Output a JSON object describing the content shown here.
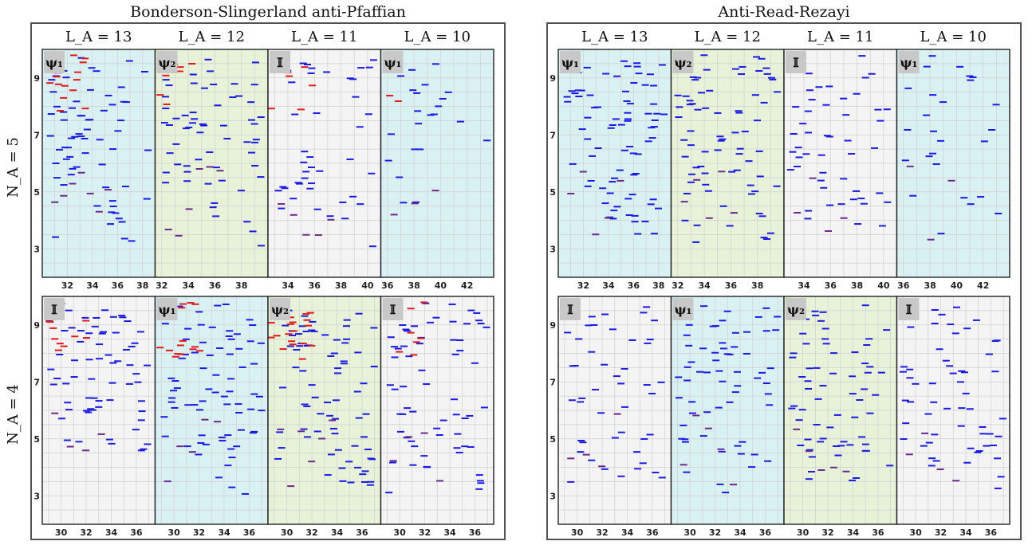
{
  "chart_data": [
    {
      "type": "scatter",
      "title": "Bonderson-Slingerland anti-Pfaffian",
      "column_labels": [
        "L_A = 13",
        "L_A = 12",
        "L_A = 11",
        "L_A = 10"
      ],
      "row_labels": [
        "N_A = 5",
        "N_A = 4"
      ],
      "ylim": [
        2,
        10
      ],
      "yticks": [
        3,
        5,
        7,
        9
      ],
      "grid": true,
      "panels": [
        {
          "row": 0,
          "col": 0,
          "label": "ψ₁",
          "background": "#daf1f4",
          "xlim": [
            30,
            39
          ],
          "xticks": [
            32,
            34,
            36,
            38
          ],
          "seed": 11,
          "n": 70,
          "red": 14,
          "purple": 7
        },
        {
          "row": 0,
          "col": 1,
          "label": "ψ₂",
          "background": "#e7f2d8",
          "xlim": [
            31.5,
            40
          ],
          "xticks": [
            32,
            34,
            36,
            38
          ],
          "seed": 23,
          "n": 60,
          "red": 9,
          "purple": 6
        },
        {
          "row": 0,
          "col": 2,
          "label": "𝕀",
          "background": "#f4f4f4",
          "xlim": [
            32.5,
            41
          ],
          "xticks": [
            34,
            36,
            38,
            40
          ],
          "seed": 37,
          "n": 42,
          "red": 6,
          "purple": 5
        },
        {
          "row": 0,
          "col": 3,
          "label": "ψ₁",
          "background": "#daf1f4",
          "xlim": [
            35.5,
            44
          ],
          "xticks": [
            36,
            38,
            40,
            42
          ],
          "seed": 51,
          "n": 22,
          "red": 2,
          "purple": 3
        },
        {
          "row": 1,
          "col": 0,
          "label": "𝕀",
          "background": "#f4f4f4",
          "xlim": [
            28.5,
            37.5
          ],
          "xticks": [
            30,
            32,
            34,
            36
          ],
          "seed": 61,
          "n": 66,
          "red": 13,
          "purple": 4
        },
        {
          "row": 1,
          "col": 1,
          "label": "ψ₁",
          "background": "#daf1f4",
          "xlim": [
            28.5,
            37.5
          ],
          "xticks": [
            30,
            32,
            34,
            36
          ],
          "seed": 73,
          "n": 72,
          "red": 16,
          "purple": 5
        },
        {
          "row": 1,
          "col": 2,
          "label": "ψ₂",
          "background": "#e7f2d8",
          "xlim": [
            28.5,
            37.5
          ],
          "xticks": [
            30,
            32,
            34,
            36
          ],
          "seed": 89,
          "n": 76,
          "red": 18,
          "purple": 6
        },
        {
          "row": 1,
          "col": 3,
          "label": "𝕀",
          "background": "#f4f4f4",
          "xlim": [
            28.5,
            37.5
          ],
          "xticks": [
            30,
            32,
            34,
            36
          ],
          "seed": 97,
          "n": 64,
          "red": 10,
          "purple": 4
        }
      ]
    },
    {
      "type": "scatter",
      "title": "Anti-Read-Rezayi",
      "column_labels": [
        "L_A = 13",
        "L_A = 12",
        "L_A = 11",
        "L_A = 10"
      ],
      "row_labels": [],
      "ylim": [
        2,
        10
      ],
      "yticks": [
        3,
        5,
        7,
        9
      ],
      "grid": true,
      "panels": [
        {
          "row": 0,
          "col": 0,
          "label": "ψ₁",
          "background": "#daf1f4",
          "xlim": [
            30,
            39
          ],
          "xticks": [
            32,
            34,
            36,
            38
          ],
          "seed": 103,
          "n": 80,
          "red": 0,
          "purple": 5
        },
        {
          "row": 0,
          "col": 1,
          "label": "ψ₂",
          "background": "#e7f2d8",
          "xlim": [
            31.5,
            40
          ],
          "xticks": [
            32,
            34,
            36,
            38
          ],
          "seed": 113,
          "n": 74,
          "red": 0,
          "purple": 5
        },
        {
          "row": 0,
          "col": 2,
          "label": "𝕀",
          "background": "#f4f4f4",
          "xlim": [
            32.5,
            41
          ],
          "xticks": [
            34,
            36,
            38,
            40
          ],
          "seed": 127,
          "n": 48,
          "red": 0,
          "purple": 4
        },
        {
          "row": 0,
          "col": 3,
          "label": "ψ₁",
          "background": "#daf1f4",
          "xlim": [
            35.5,
            44
          ],
          "xticks": [
            36,
            38,
            40,
            42
          ],
          "seed": 139,
          "n": 26,
          "red": 0,
          "purple": 3
        },
        {
          "row": 1,
          "col": 0,
          "label": "𝕀",
          "background": "#f4f4f4",
          "xlim": [
            28.5,
            37.5
          ],
          "xticks": [
            30,
            32,
            34,
            36
          ],
          "seed": 149,
          "n": 46,
          "red": 0,
          "purple": 4
        },
        {
          "row": 1,
          "col": 1,
          "label": "ψ₁",
          "background": "#daf1f4",
          "xlim": [
            28.5,
            37.5
          ],
          "xticks": [
            30,
            32,
            34,
            36
          ],
          "seed": 157,
          "n": 64,
          "red": 0,
          "purple": 5
        },
        {
          "row": 1,
          "col": 2,
          "label": "ψ₂",
          "background": "#e7f2d8",
          "xlim": [
            28.5,
            37.5
          ],
          "xticks": [
            30,
            32,
            34,
            36
          ],
          "seed": 167,
          "n": 66,
          "red": 0,
          "purple": 5
        },
        {
          "row": 1,
          "col": 3,
          "label": "𝕀",
          "background": "#f4f4f4",
          "xlim": [
            28.5,
            37.5
          ],
          "xticks": [
            30,
            32,
            34,
            36
          ],
          "seed": 179,
          "n": 58,
          "red": 0,
          "purple": 4
        }
      ]
    }
  ],
  "colors": {
    "blue": "#1a1ae0",
    "purple": "#6a2a8a",
    "red": "#e01a1a",
    "badge": "#c8c8c8",
    "frame": "#555555",
    "grid": "#d0d0d0"
  }
}
